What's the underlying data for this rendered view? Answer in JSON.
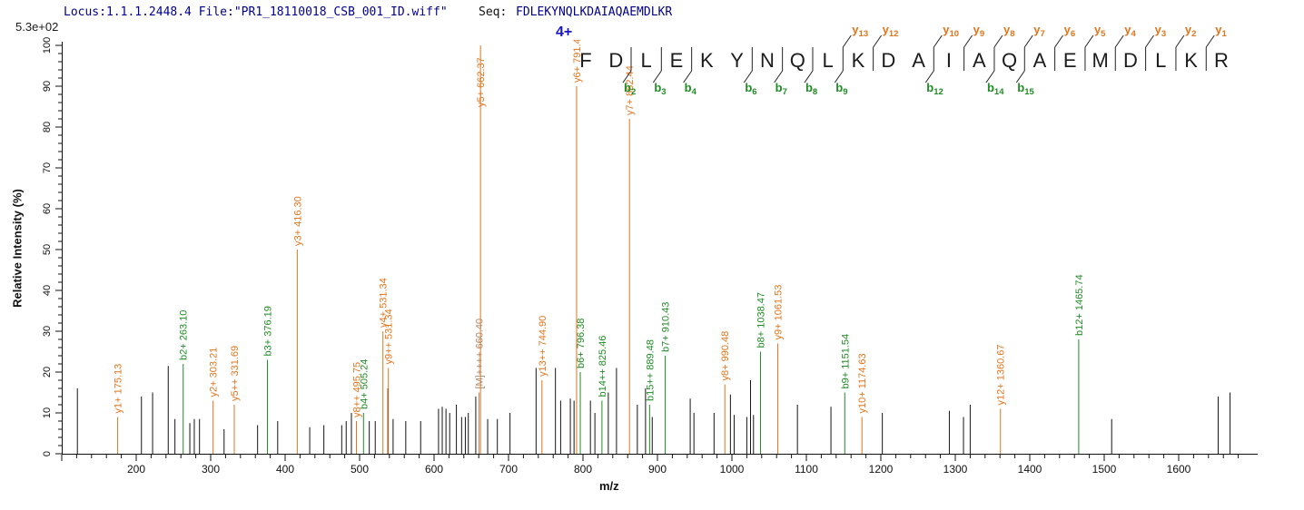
{
  "header": {
    "locus_file": "Locus:1.1.1.2448.4 File:\"PR1_18110018_CSB_001_ID.wiff\"",
    "seq_label": "Seq:",
    "sequence": "FDLEKYNQLKDAIAQAEMDLKR",
    "intensity_scale": "5.3e+02"
  },
  "colors": {
    "y_ion": "#e0751c",
    "b_ion": "#1f8b24",
    "precursor": "#b08968",
    "peak": "#141414",
    "header_text": "#00008b",
    "charge_text": "#1414cc"
  },
  "chart_data": {
    "type": "stick-spectrum (MS/MS peptide fragmentation)",
    "title": "",
    "xlabel": "m/z",
    "ylabel": "Relative  Intensity (%)",
    "xlim": [
      100,
      1690
    ],
    "ylim": [
      0,
      100
    ],
    "x_major_tick_step": 100,
    "x_minor_tick_step": 20,
    "x_tick_labels": [
      200,
      300,
      400,
      500,
      600,
      700,
      800,
      900,
      1000,
      1100,
      1200,
      1300,
      1400,
      1500,
      1600
    ],
    "y_major_tick_step": 10,
    "y_minor_tick_step": 2,
    "y_tick_labels": [
      0,
      10,
      20,
      30,
      40,
      50,
      60,
      70,
      80,
      90,
      100
    ],
    "grid": false,
    "base_peak_intensity": "5.3e+02",
    "precursor_charge": "4+",
    "peptide": "FDLEKYNQLKDAIAQAEMDLKR",
    "labeled_peaks": [
      {
        "label": "y1+ 175.13",
        "mz": 175.13,
        "intensity": 9,
        "type": "y"
      },
      {
        "label": "b2+ 263.10",
        "mz": 263.1,
        "intensity": 22,
        "type": "b"
      },
      {
        "label": "y2+ 303.21",
        "mz": 303.21,
        "intensity": 13,
        "type": "y"
      },
      {
        "label": "y5++ 331.69",
        "mz": 331.69,
        "intensity": 12,
        "type": "y"
      },
      {
        "label": "b3+ 376.19",
        "mz": 376.19,
        "intensity": 23,
        "type": "b"
      },
      {
        "label": "y3+ 416.30",
        "mz": 416.3,
        "intensity": 50,
        "type": "y"
      },
      {
        "label": "y8++ 495.75",
        "mz": 495.75,
        "intensity": 8,
        "type": "y"
      },
      {
        "label": "b4+ 505.24",
        "mz": 505.24,
        "intensity": 10,
        "type": "b"
      },
      {
        "label": "y4+ 531.34",
        "mz": 531.34,
        "intensity": 30,
        "type": "y"
      },
      {
        "label": "y9++ 531.34",
        "mz": 531.34,
        "intensity": 21,
        "type": "y",
        "dx": 6
      },
      {
        "label": "[M]++++ 660.40",
        "mz": 660.4,
        "intensity": 15,
        "type": "precursor"
      },
      {
        "label": "y5+ 662.37",
        "mz": 662.37,
        "intensity": 100,
        "type": "y"
      },
      {
        "label": "y13++ 744.90",
        "mz": 744.9,
        "intensity": 18,
        "type": "y"
      },
      {
        "label": "y6+ 791.41",
        "mz": 791.41,
        "intensity": 90,
        "type": "y"
      },
      {
        "label": "b6+ 796.38",
        "mz": 796.38,
        "intensity": 20,
        "type": "b"
      },
      {
        "label": "b14++ 825.46",
        "mz": 825.46,
        "intensity": 13,
        "type": "b"
      },
      {
        "label": "y7+ 862.44",
        "mz": 862.44,
        "intensity": 82,
        "type": "y"
      },
      {
        "label": "b15++ 889.48",
        "mz": 889.48,
        "intensity": 12,
        "type": "b"
      },
      {
        "label": "b7+ 910.43",
        "mz": 910.43,
        "intensity": 24,
        "type": "b"
      },
      {
        "label": "y8+ 990.48",
        "mz": 990.48,
        "intensity": 17,
        "type": "y"
      },
      {
        "label": "b8+ 1038.47",
        "mz": 1038.47,
        "intensity": 25,
        "type": "b"
      },
      {
        "label": "y9+ 1061.53",
        "mz": 1061.53,
        "intensity": 27,
        "type": "y"
      },
      {
        "label": "b9+ 1151.54",
        "mz": 1151.54,
        "intensity": 15,
        "type": "b"
      },
      {
        "label": "y10+ 1174.63",
        "mz": 1174.63,
        "intensity": 9,
        "type": "y"
      },
      {
        "label": "y12+ 1360.67",
        "mz": 1360.67,
        "intensity": 11,
        "type": "y"
      },
      {
        "label": "b12+ 1465.74",
        "mz": 1465.74,
        "intensity": 28,
        "type": "b"
      }
    ],
    "unlabeled_peaks": [
      [
        121,
        16
      ],
      [
        207,
        14
      ],
      [
        222,
        15
      ],
      [
        243,
        21.5
      ],
      [
        252,
        8.5
      ],
      [
        272,
        7.5
      ],
      [
        278,
        8.5
      ],
      [
        285,
        8.5
      ],
      [
        318,
        6
      ],
      [
        363,
        7
      ],
      [
        390,
        8
      ],
      [
        433,
        6.5
      ],
      [
        452,
        7
      ],
      [
        476,
        7
      ],
      [
        482,
        8
      ],
      [
        489,
        10
      ],
      [
        513,
        8
      ],
      [
        521,
        8
      ],
      [
        538,
        16
      ],
      [
        545,
        8.5
      ],
      [
        562,
        8
      ],
      [
        582,
        8
      ],
      [
        606,
        11
      ],
      [
        611,
        11.5
      ],
      [
        616,
        11
      ],
      [
        621,
        10
      ],
      [
        630,
        12
      ],
      [
        637,
        9
      ],
      [
        642,
        9
      ],
      [
        646,
        10
      ],
      [
        656,
        14
      ],
      [
        672,
        8.5
      ],
      [
        685,
        8.5
      ],
      [
        702,
        10
      ],
      [
        737,
        21
      ],
      [
        763,
        21
      ],
      [
        770,
        13
      ],
      [
        783,
        13.5
      ],
      [
        788,
        13
      ],
      [
        810,
        13
      ],
      [
        816,
        10
      ],
      [
        834,
        15
      ],
      [
        845,
        21
      ],
      [
        873,
        12
      ],
      [
        884,
        16
      ],
      [
        893,
        9
      ],
      [
        944,
        13.5
      ],
      [
        949,
        10
      ],
      [
        976,
        10
      ],
      [
        998,
        14.5
      ],
      [
        1003,
        9.5
      ],
      [
        1020,
        9
      ],
      [
        1025,
        18
      ],
      [
        1029,
        9.5
      ],
      [
        1088,
        12
      ],
      [
        1133,
        11.5
      ],
      [
        1202,
        10
      ],
      [
        1292,
        10.5
      ],
      [
        1311,
        9
      ],
      [
        1320,
        12
      ],
      [
        1510,
        8.5
      ],
      [
        1653,
        14
      ],
      [
        1669,
        15
      ]
    ],
    "sequence_cleavages": [
      {
        "pos": 2,
        "b": "b2"
      },
      {
        "pos": 3,
        "b": "b3"
      },
      {
        "pos": 4,
        "b": "b4"
      },
      {
        "pos": 6,
        "b": "b6"
      },
      {
        "pos": 7,
        "b": "b7"
      },
      {
        "pos": 8,
        "b": "b8"
      },
      {
        "pos": 9,
        "b": "b9",
        "y": "y13"
      },
      {
        "pos": 10,
        "y": "y12"
      },
      {
        "pos": 12,
        "b": "b12",
        "y": "y10"
      },
      {
        "pos": 13,
        "y": "y9"
      },
      {
        "pos": 14,
        "b": "b14",
        "y": "y8"
      },
      {
        "pos": 15,
        "b": "b15",
        "y": "y7"
      },
      {
        "pos": 16,
        "y": "y6"
      },
      {
        "pos": 17,
        "y": "y5"
      },
      {
        "pos": 18,
        "y": "y4"
      },
      {
        "pos": 19,
        "y": "y3"
      },
      {
        "pos": 20,
        "y": "y2"
      },
      {
        "pos": 21,
        "y": "y1"
      }
    ]
  }
}
